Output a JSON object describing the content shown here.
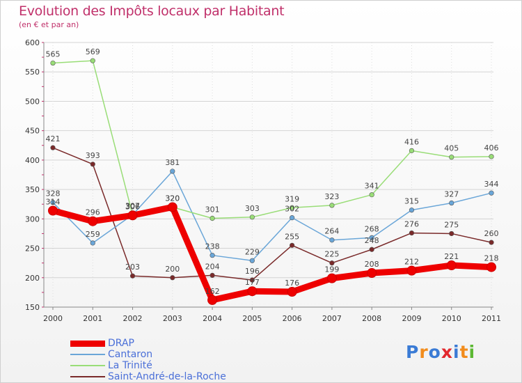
{
  "chart_data": {
    "type": "line",
    "title": "Evolution des Impôts locaux par Habitant",
    "subtitle": "(en € et par an)",
    "xlabel": "",
    "ylabel": "",
    "ylim": [
      150,
      600
    ],
    "yticks": [
      150,
      200,
      250,
      300,
      350,
      400,
      450,
      500,
      550,
      600
    ],
    "categories": [
      "2000",
      "2001",
      "2002",
      "2003",
      "2004",
      "2005",
      "2006",
      "2007",
      "2008",
      "2009",
      "2010",
      "2011"
    ],
    "series": [
      {
        "name": "DRAP",
        "color": "#ee0000",
        "values": [
          314,
          296,
          306,
          320,
          162,
          177,
          176,
          199,
          208,
          212,
          221,
          218
        ]
      },
      {
        "name": "Cantaron",
        "color": "#6aa6d8",
        "values": [
          328,
          259,
          307,
          381,
          238,
          229,
          302,
          264,
          268,
          315,
          327,
          344
        ]
      },
      {
        "name": "La Trinité",
        "color": "#99dd77",
        "values": [
          565,
          569,
          307,
          320,
          301,
          303,
          319,
          323,
          341,
          416,
          405,
          406
        ]
      },
      {
        "name": "Saint-André-de-la-Roche",
        "color": "#7a2a2a",
        "values": [
          421,
          393,
          203,
          200,
          204,
          196,
          255,
          225,
          248,
          276,
          275,
          260
        ]
      }
    ]
  },
  "logo": {
    "text": "Proxiti",
    "letters": [
      {
        "ch": "P",
        "color": "#3a7bd5"
      },
      {
        "ch": "r",
        "color": "#f28c1c"
      },
      {
        "ch": "o",
        "color": "#3a7bd5"
      },
      {
        "ch": "x",
        "color": "#e2282d"
      },
      {
        "ch": "i",
        "color": "#3a7bd5"
      },
      {
        "ch": "t",
        "color": "#f28c1c"
      },
      {
        "ch": "i",
        "color": "#5cb833"
      }
    ]
  }
}
